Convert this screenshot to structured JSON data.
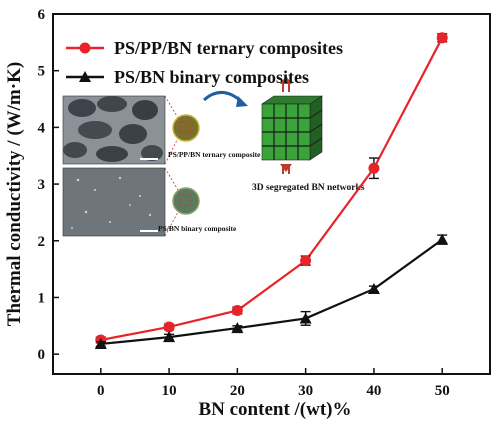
{
  "chart_data": {
    "type": "line",
    "title": "",
    "xlabel": "BN content /(wt)%",
    "ylabel": "Thermal conductivity / (W/m·K)",
    "x": [
      0,
      10,
      20,
      30,
      40,
      50
    ],
    "xticks": [
      "0",
      "10",
      "20",
      "30",
      "40",
      "50"
    ],
    "yticks": [
      "0",
      "1",
      "2",
      "3",
      "4",
      "5",
      "6"
    ],
    "xlim": [
      -7,
      57
    ],
    "ylim": [
      -0.35,
      6
    ],
    "grid": false,
    "legend_position": "top-left",
    "series": [
      {
        "name": "PS/PP/BN ternary composites",
        "color": "#e8232a",
        "marker": "circle",
        "values": [
          0.25,
          0.48,
          0.77,
          1.65,
          3.28,
          5.58
        ],
        "errors": [
          0.05,
          0.05,
          0.06,
          0.08,
          0.18,
          0.07
        ]
      },
      {
        "name": "PS/BN binary composites",
        "color": "#111111",
        "marker": "triangle",
        "values": [
          0.18,
          0.3,
          0.46,
          0.63,
          1.15,
          2.02
        ],
        "errors": [
          0.04,
          0.05,
          0.04,
          0.12,
          0.05,
          0.08
        ]
      }
    ],
    "inset": {
      "labels": [
        "PS/PP/BN ternary composite",
        "PS/BN binary composite",
        "3D segregated BN networks"
      ]
    }
  }
}
